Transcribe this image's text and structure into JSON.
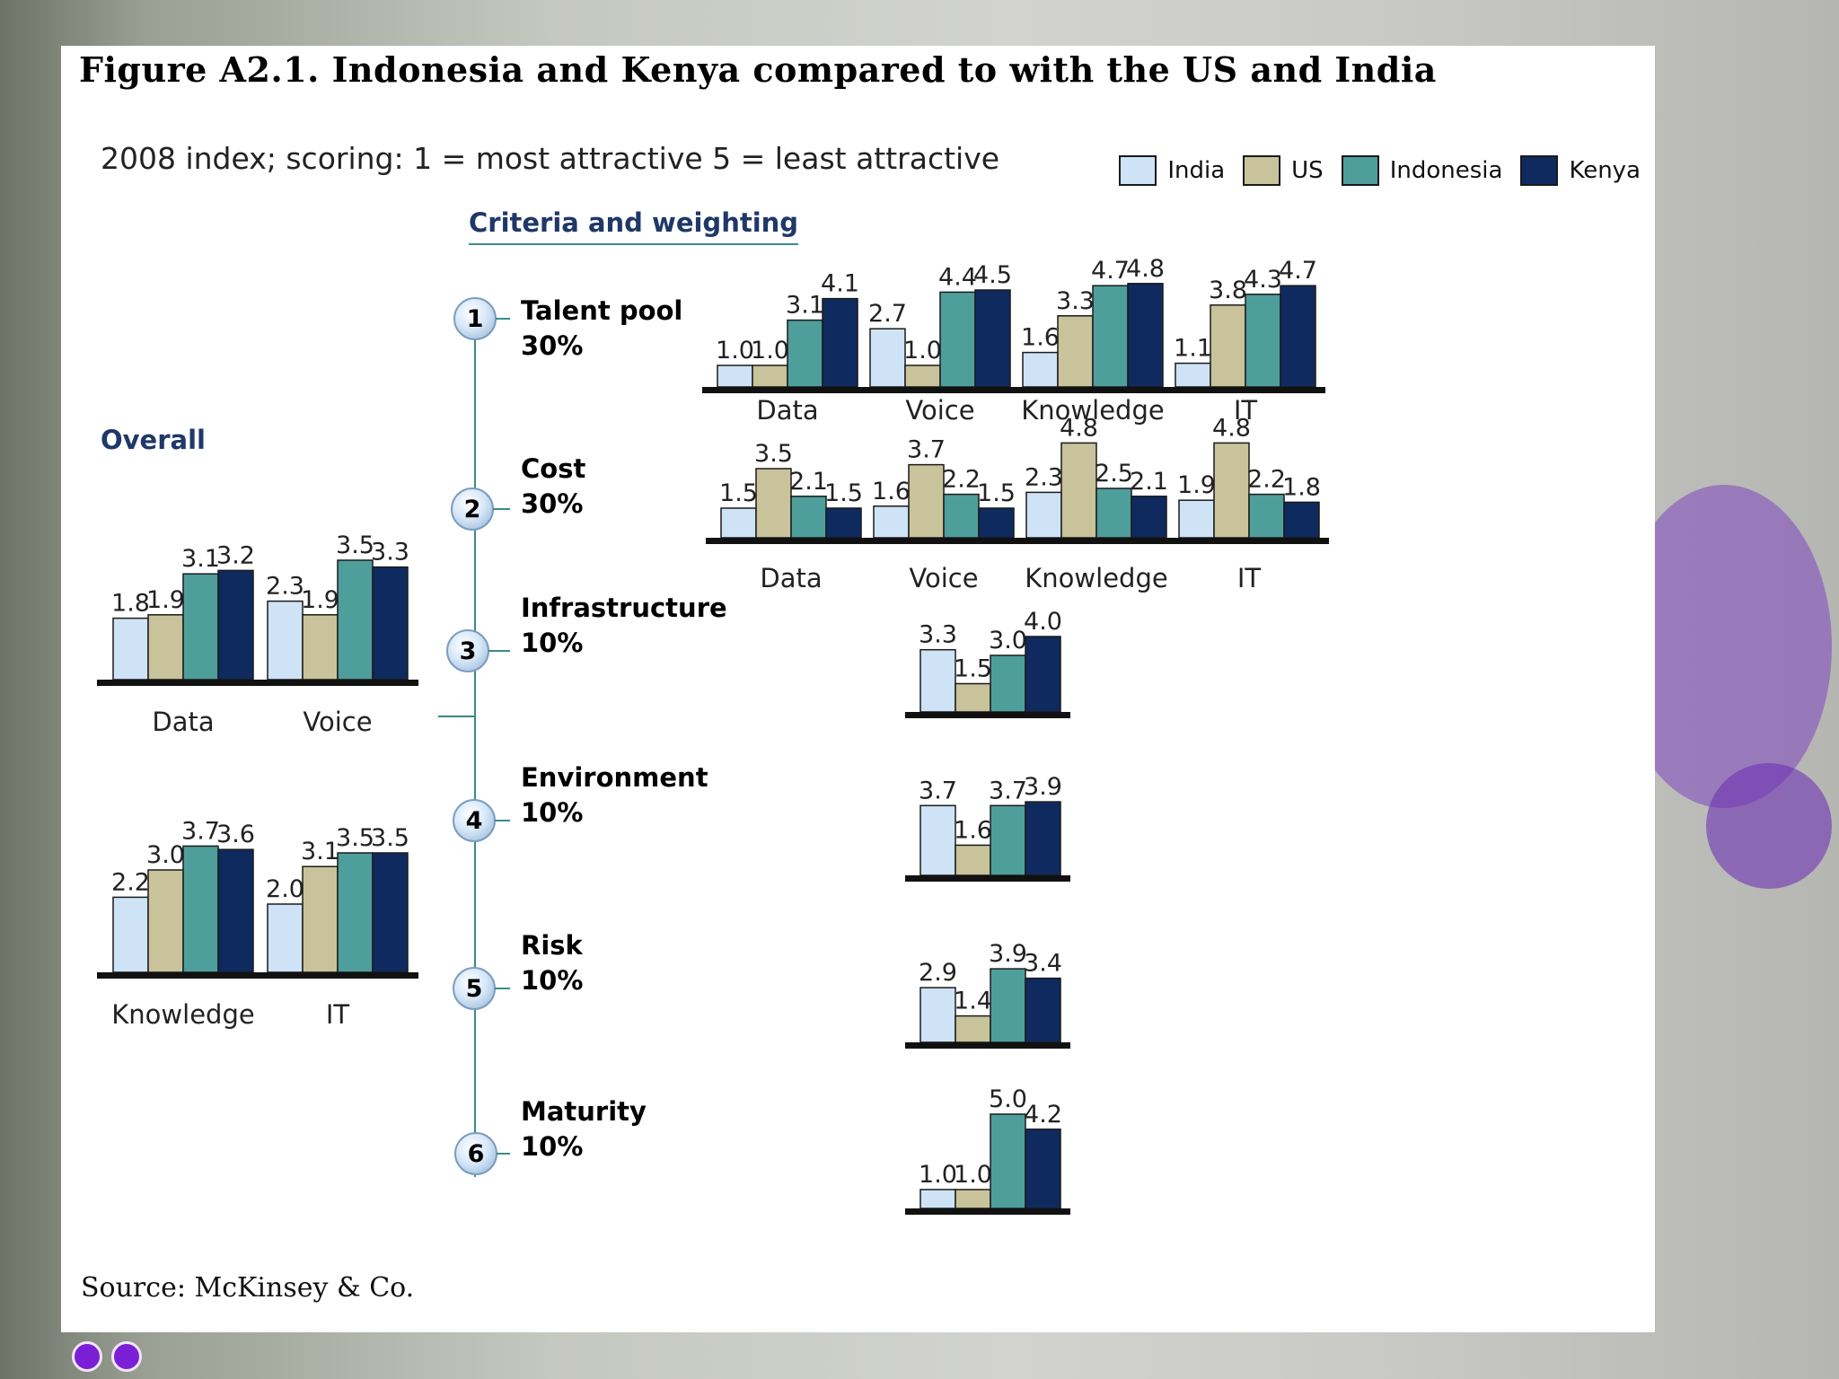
{
  "title": "Figure A2.1. Indonesia and Kenya compared to with the US and India",
  "subtitle": "2008 index; scoring: 1 = most attractive  5 = least attractive",
  "legend": {
    "entries": [
      "India",
      "US",
      "Indonesia",
      "Kenya"
    ],
    "colors": [
      "#cfe3f7",
      "#c8c39a",
      "#4e9e9c",
      "#0f2a5e"
    ]
  },
  "criteria_heading": "Criteria and weighting",
  "overall_heading": "Overall",
  "criteria": [
    {
      "number": "1",
      "name": "Talent pool",
      "weight": "30%"
    },
    {
      "number": "2",
      "name": "Cost",
      "weight": "30%"
    },
    {
      "number": "3",
      "name": "Infrastructure",
      "weight": "10%"
    },
    {
      "number": "4",
      "name": "Environment",
      "weight": "10%"
    },
    {
      "number": "5",
      "name": "Risk",
      "weight": "10%"
    },
    {
      "number": "6",
      "name": "Maturity",
      "weight": "10%"
    }
  ],
  "source": "Source: McKinsey & Co.",
  "chart_data": [
    {
      "id": "overall-top",
      "type": "bar",
      "title": "Overall",
      "categories": [
        "Data",
        "Voice"
      ],
      "series": [
        {
          "name": "India",
          "values": [
            1.8,
            2.3
          ]
        },
        {
          "name": "US",
          "values": [
            1.9,
            1.9
          ]
        },
        {
          "name": "Indonesia",
          "values": [
            3.1,
            3.5
          ]
        },
        {
          "name": "Kenya",
          "values": [
            3.2,
            3.3
          ]
        }
      ],
      "labels": [
        [
          "1.8",
          "1.9",
          "3.1",
          "3.2"
        ],
        [
          "2.3",
          "1.9",
          "3.5",
          "3.3"
        ]
      ]
    },
    {
      "id": "overall-bottom",
      "type": "bar",
      "title": "Overall",
      "categories": [
        "Knowledge",
        "IT"
      ],
      "series": [
        {
          "name": "India",
          "values": [
            2.2,
            2.0
          ]
        },
        {
          "name": "US",
          "values": [
            3.0,
            3.1
          ]
        },
        {
          "name": "Indonesia",
          "values": [
            3.7,
            3.5
          ]
        },
        {
          "name": "Kenya",
          "values": [
            3.6,
            3.5
          ]
        }
      ],
      "labels": [
        [
          "2.2",
          "3.0",
          "3.7",
          "3.6"
        ],
        [
          "2.0",
          "3.1",
          "3.5",
          "3.5"
        ]
      ]
    },
    {
      "id": "talent-pool",
      "type": "bar",
      "title": "Talent pool",
      "categories": [
        "Data",
        "Voice",
        "Knowledge",
        "IT"
      ],
      "series": [
        {
          "name": "India",
          "values": [
            1.0,
            2.7,
            1.6,
            1.1
          ]
        },
        {
          "name": "US",
          "values": [
            1.0,
            1.0,
            3.3,
            3.8
          ]
        },
        {
          "name": "Indonesia",
          "values": [
            3.1,
            4.4,
            4.7,
            4.3
          ]
        },
        {
          "name": "Kenya",
          "values": [
            4.1,
            4.5,
            4.8,
            4.7
          ]
        }
      ],
      "labels": [
        [
          "1.0",
          "1.0",
          "3.1",
          "4.1"
        ],
        [
          "2.7",
          "1.0",
          "4.4",
          "4.5"
        ],
        [
          "1.6",
          "3.3",
          "4.7",
          "4.8"
        ],
        [
          "1.1",
          "3.8",
          "4.3",
          "4.7"
        ]
      ]
    },
    {
      "id": "cost",
      "type": "bar",
      "title": "Cost",
      "categories": [
        "Data",
        "Voice",
        "Knowledge",
        "IT"
      ],
      "series": [
        {
          "name": "India",
          "values": [
            1.5,
            1.6,
            2.3,
            1.9
          ]
        },
        {
          "name": "US",
          "values": [
            3.5,
            3.7,
            4.8,
            4.8
          ]
        },
        {
          "name": "Indonesia",
          "values": [
            2.1,
            2.2,
            2.5,
            2.2
          ]
        },
        {
          "name": "Kenya",
          "values": [
            1.5,
            1.5,
            2.1,
            1.8
          ]
        }
      ],
      "labels": [
        [
          "1.5",
          "3.5",
          "2.1",
          "1.5"
        ],
        [
          "1.6",
          "3.7",
          "2.2",
          "1.5"
        ],
        [
          "2.3",
          "4.8",
          "2.5",
          "2.1"
        ],
        [
          "1.9",
          "4.8",
          "2.2",
          "1.8"
        ]
      ]
    },
    {
      "id": "infrastructure",
      "type": "bar",
      "title": "Infrastructure",
      "categories": [
        ""
      ],
      "series": [
        {
          "name": "India",
          "values": [
            3.3
          ]
        },
        {
          "name": "US",
          "values": [
            1.5
          ]
        },
        {
          "name": "Indonesia",
          "values": [
            3.0
          ]
        },
        {
          "name": "Kenya",
          "values": [
            4.0
          ]
        }
      ],
      "labels": [
        [
          "3.3",
          "1.5",
          "3.0",
          "4.0"
        ]
      ]
    },
    {
      "id": "environment",
      "type": "bar",
      "title": "Environment",
      "categories": [
        ""
      ],
      "series": [
        {
          "name": "India",
          "values": [
            3.7
          ]
        },
        {
          "name": "US",
          "values": [
            1.6
          ]
        },
        {
          "name": "Indonesia",
          "values": [
            3.7
          ]
        },
        {
          "name": "Kenya",
          "values": [
            3.9
          ]
        }
      ],
      "labels": [
        [
          "3.7",
          "1.6",
          "3.7",
          "3.9"
        ]
      ]
    },
    {
      "id": "risk",
      "type": "bar",
      "title": "Risk",
      "categories": [
        ""
      ],
      "series": [
        {
          "name": "India",
          "values": [
            2.9
          ]
        },
        {
          "name": "US",
          "values": [
            1.4
          ]
        },
        {
          "name": "Indonesia",
          "values": [
            3.9
          ]
        },
        {
          "name": "Kenya",
          "values": [
            3.4
          ]
        }
      ],
      "labels": [
        [
          "2.9",
          "1.4",
          "3.9",
          "3.4"
        ]
      ]
    },
    {
      "id": "maturity",
      "type": "bar",
      "title": "Maturity",
      "categories": [
        ""
      ],
      "series": [
        {
          "name": "India",
          "values": [
            1.0
          ]
        },
        {
          "name": "US",
          "values": [
            1.0
          ]
        },
        {
          "name": "Indonesia",
          "values": [
            5.0
          ]
        },
        {
          "name": "Kenya",
          "values": [
            4.2
          ]
        }
      ],
      "labels": [
        [
          "1.0",
          "1.0",
          "5.0",
          "4.2"
        ]
      ]
    }
  ]
}
